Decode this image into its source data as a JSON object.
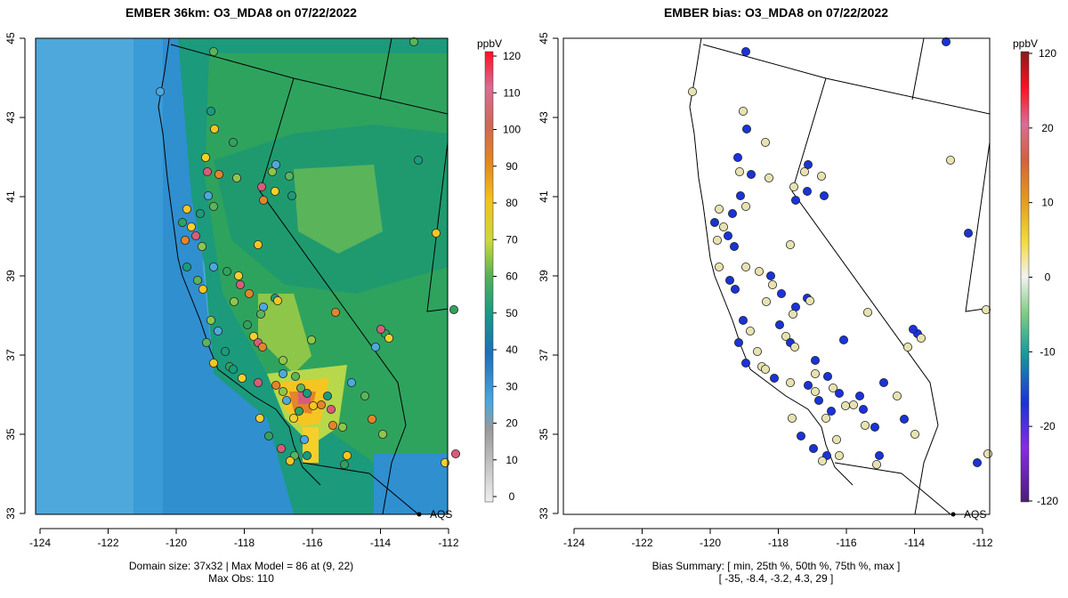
{
  "left_panel": {
    "title": "EMBER 36km: O3_MDA8 on 07/22/2022",
    "footer_line1": "Domain size: 37x32 | Max Model = 86 at (9, 22)",
    "footer_line2": "Max Obs: 110",
    "colorbar": {
      "unit": "ppbV",
      "ticks": [
        "120",
        "110",
        "100",
        "90",
        "80",
        "70",
        "60",
        "50",
        "40",
        "30",
        "20",
        "10",
        "0"
      ]
    }
  },
  "right_panel": {
    "title": "EMBER bias: O3_MDA8 on 07/22/2022",
    "footer_line1": "Bias Summary: [ min, 25th %, 50th %, 75th %, max ]",
    "footer_line2": "[ -35,   -8.4,   -3.2,   4.3,   29 ]",
    "colorbar": {
      "unit": "ppbV",
      "ticks": [
        "120",
        "20",
        "10",
        "0",
        "-10",
        "-20",
        "-120"
      ]
    }
  },
  "axes": {
    "x_ticks": [
      "-124",
      "-122",
      "-120",
      "-118",
      "-116",
      "-114",
      "-112"
    ],
    "y_ticks": [
      "45",
      "43",
      "41",
      "39",
      "37",
      "35",
      "33"
    ]
  },
  "aqs_label": "AQS",
  "colors": {
    "ocean_far": "#4ea8dc",
    "ocean_near": "#2f8fcf",
    "land_low": "#1b9a7c",
    "land_mid": "#2ea35e",
    "land_high": "#8ec649",
    "hot": "#f5c522",
    "hotter": "#e3852a",
    "hottest": "#d85c7a"
  }
}
